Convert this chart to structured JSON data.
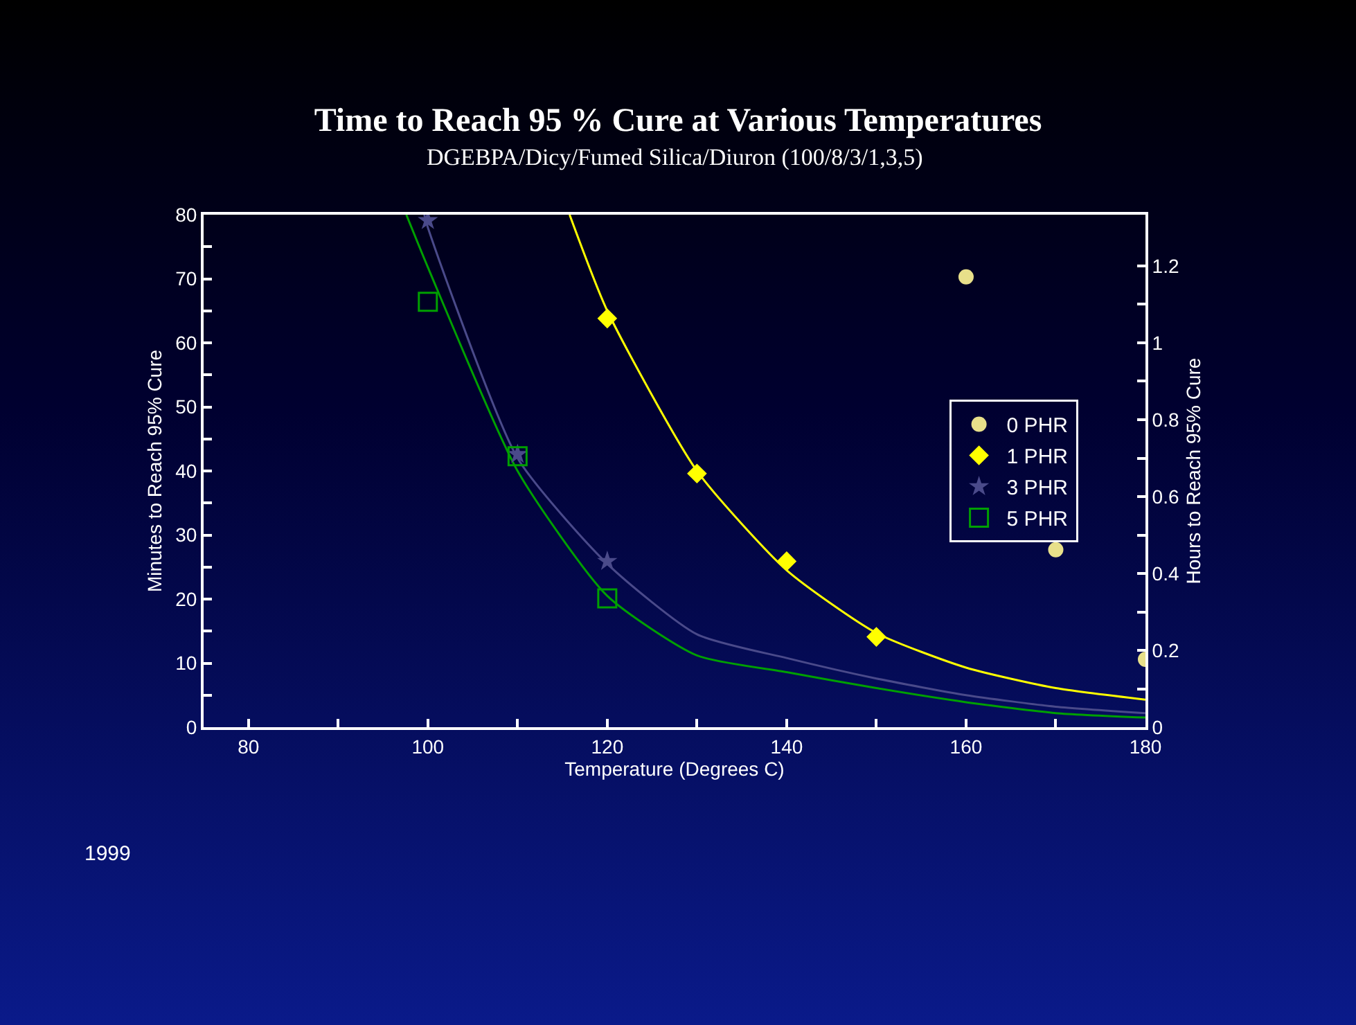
{
  "chart_data": {
    "type": "scatter",
    "title": "Time to Reach 95 % Cure at Various Temperatures",
    "subtitle": "DGEBPA/Dicy/Fumed Silica/Diuron (100/8/3/1,3,5)",
    "xlabel": "Temperature (Degrees C)",
    "ylabel": "Minutes to Reach 95% Cure",
    "y2label": "Hours to Reach 95% Cure",
    "xlim": [
      75,
      180
    ],
    "xticks": [
      80,
      {
        "value": 90,
        "label": null
      },
      100,
      {
        "value": 110,
        "label": null
      },
      120,
      {
        "value": 130,
        "label": null
      },
      140,
      {
        "value": 150,
        "label": null
      },
      160,
      {
        "value": 170,
        "label": null
      },
      180
    ],
    "ylim": [
      0,
      80
    ],
    "yticks": [
      0,
      {
        "value": 5,
        "label": null
      },
      10,
      {
        "value": 15,
        "label": null
      },
      20,
      {
        "value": 25,
        "label": null
      },
      30,
      {
        "value": 35,
        "label": null
      },
      40,
      {
        "value": 45,
        "label": null
      },
      50,
      {
        "value": 55,
        "label": null
      },
      60,
      {
        "value": 65,
        "label": null
      },
      70,
      {
        "value": 75,
        "label": null
      },
      80
    ],
    "y2lim": [
      0,
      1.3333
    ],
    "y2ticks": [
      0,
      {
        "value": 0.1,
        "label": null
      },
      0.2,
      {
        "value": 0.3,
        "label": null
      },
      0.4,
      {
        "value": 0.5,
        "label": null
      },
      0.6,
      {
        "value": 0.7,
        "label": null
      },
      0.8,
      {
        "value": 0.9,
        "label": null
      },
      1,
      {
        "value": 1.1,
        "label": null
      },
      1.2
    ],
    "grid": false,
    "legend": "right",
    "annotations": [
      "1999"
    ],
    "series": [
      {
        "name": "0 PHR",
        "color": "#e8e08a",
        "marker": "circle",
        "x": [
          160,
          170,
          180
        ],
        "values": [
          70.3,
          27.7,
          10.6
        ]
      },
      {
        "name": "1 PHR",
        "color": "#ffff00",
        "marker": "diamond",
        "x": [
          120,
          130,
          140,
          150
        ],
        "values": [
          63.8,
          39.6,
          25.9,
          14.1
        ]
      },
      {
        "name": "3 PHR",
        "color": "#4a4a8a",
        "marker": "star",
        "x": [
          100,
          110,
          120
        ],
        "values": [
          79.1,
          42.6,
          25.9
        ]
      },
      {
        "name": "5 PHR",
        "color": "#00a000",
        "marker": "square",
        "x": [
          100,
          110,
          120
        ],
        "values": [
          66.4,
          42.3,
          20.1
        ]
      },
      {
        "type": "line",
        "color": "#ffff00",
        "x": [
          115.8,
          120,
          130,
          140,
          150,
          160,
          170,
          180
        ],
        "values": [
          80,
          65,
          40,
          24.5,
          14.7,
          9.3,
          6.1,
          4.3
        ]
      },
      {
        "type": "line",
        "color": "#4a4a8a",
        "x": [
          99.6,
          100,
          110,
          120,
          130,
          140,
          150,
          160,
          170,
          180
        ],
        "values": [
          80,
          78,
          42,
          25.5,
          14.5,
          10.8,
          7.6,
          5,
          3.2,
          2.2
        ]
      },
      {
        "type": "line",
        "color": "#00a000",
        "x": [
          97.6,
          100,
          110,
          120,
          130,
          140,
          150,
          160,
          170,
          180
        ],
        "values": [
          80,
          71.8,
          40,
          20.5,
          11.2,
          8.6,
          6.1,
          3.9,
          2.2,
          1.5
        ]
      }
    ]
  }
}
